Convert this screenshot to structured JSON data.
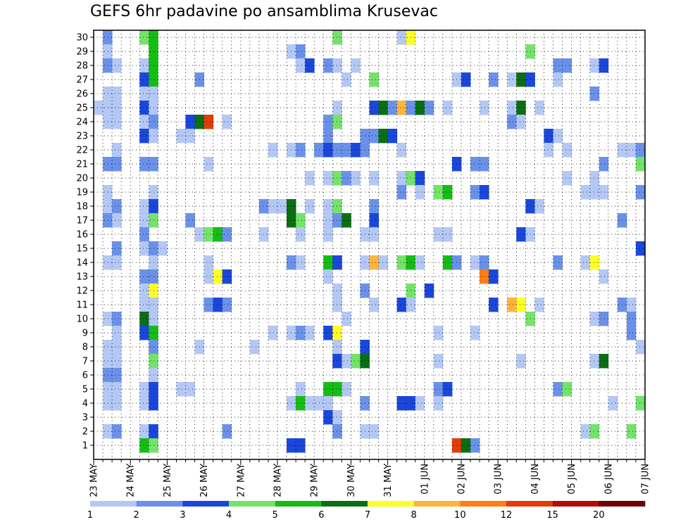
{
  "chart_data": {
    "type": "heatmap",
    "title": "GEFS 6hr padavine po ansamblima Krusevac",
    "xlabel": "",
    "ylabel": "",
    "y_range": [
      1,
      30
    ],
    "y_ticks": [
      "1",
      "2",
      "3",
      "4",
      "5",
      "6",
      "7",
      "8",
      "9",
      "10",
      "11",
      "12",
      "13",
      "14",
      "15",
      "16",
      "17",
      "18",
      "19",
      "20",
      "21",
      "22",
      "23",
      "24",
      "25",
      "26",
      "27",
      "28",
      "29",
      "30"
    ],
    "x_ticks": [
      "23 MAY",
      "24 MAY",
      "25 MAY",
      "26 MAY",
      "27 MAY",
      "28 MAY",
      "29 MAY",
      "30 MAY",
      "31 MAY",
      "01 JUN",
      "02 JUN",
      "03 JUN",
      "04 JUN",
      "05 JUN",
      "06 JUN",
      "07 JUN"
    ],
    "x_units": "6-hour steps from 23 MAY 00Z",
    "grid": true,
    "legend": {
      "placement": "bottom",
      "labels": [
        "1",
        "2",
        "3",
        "4",
        "5",
        "6",
        "7",
        "8",
        "10",
        "12",
        "15",
        "20"
      ],
      "colors": [
        "#b4c8f5",
        "#6a91ea",
        "#1a47db",
        "#73e36a",
        "#14bd14",
        "#0b6e14",
        "#ffff28",
        "#ffb43c",
        "#ff7d14",
        "#e13c0a",
        "#b40a0a",
        "#6e0000"
      ]
    },
    "cells": [
      [
        30,
        1,
        2
      ],
      [
        30,
        5,
        4
      ],
      [
        30,
        6,
        5
      ],
      [
        30,
        26,
        4
      ],
      [
        30,
        33,
        1
      ],
      [
        30,
        34,
        7
      ],
      [
        29,
        1,
        1
      ],
      [
        29,
        6,
        5
      ],
      [
        29,
        21,
        1
      ],
      [
        29,
        22,
        2
      ],
      [
        29,
        47,
        4
      ],
      [
        28,
        1,
        2
      ],
      [
        28,
        2,
        1
      ],
      [
        28,
        5,
        1
      ],
      [
        28,
        6,
        5
      ],
      [
        28,
        22,
        1
      ],
      [
        28,
        23,
        3
      ],
      [
        28,
        25,
        2
      ],
      [
        28,
        26,
        1
      ],
      [
        28,
        28,
        1
      ],
      [
        28,
        50,
        2
      ],
      [
        28,
        51,
        2
      ],
      [
        28,
        54,
        1
      ],
      [
        28,
        55,
        3
      ],
      [
        27,
        5,
        3
      ],
      [
        27,
        6,
        5
      ],
      [
        27,
        11,
        2
      ],
      [
        27,
        27,
        1
      ],
      [
        27,
        30,
        4
      ],
      [
        27,
        39,
        1
      ],
      [
        27,
        40,
        3
      ],
      [
        27,
        43,
        2
      ],
      [
        27,
        45,
        1
      ],
      [
        27,
        46,
        6
      ],
      [
        27,
        47,
        3
      ],
      [
        27,
        50,
        1
      ],
      [
        26,
        1,
        1
      ],
      [
        26,
        2,
        1
      ],
      [
        26,
        5,
        1
      ],
      [
        26,
        6,
        1
      ],
      [
        26,
        54,
        2
      ],
      [
        25,
        0,
        1
      ],
      [
        25,
        1,
        1
      ],
      [
        25,
        2,
        1
      ],
      [
        25,
        5,
        3
      ],
      [
        25,
        6,
        1
      ],
      [
        25,
        26,
        1
      ],
      [
        25,
        30,
        3
      ],
      [
        25,
        31,
        6
      ],
      [
        25,
        32,
        2
      ],
      [
        25,
        33,
        8
      ],
      [
        25,
        34,
        2
      ],
      [
        25,
        35,
        6
      ],
      [
        25,
        36,
        2
      ],
      [
        25,
        38,
        1
      ],
      [
        25,
        42,
        1
      ],
      [
        25,
        45,
        1
      ],
      [
        25,
        46,
        6
      ],
      [
        25,
        48,
        1
      ],
      [
        24,
        1,
        1
      ],
      [
        24,
        2,
        1
      ],
      [
        24,
        5,
        1
      ],
      [
        24,
        6,
        2
      ],
      [
        24,
        10,
        3
      ],
      [
        24,
        11,
        6
      ],
      [
        24,
        12,
        10
      ],
      [
        24,
        14,
        1
      ],
      [
        24,
        25,
        2
      ],
      [
        24,
        26,
        4
      ],
      [
        24,
        45,
        2
      ],
      [
        24,
        46,
        1
      ],
      [
        23,
        5,
        3
      ],
      [
        23,
        6,
        1
      ],
      [
        23,
        9,
        1
      ],
      [
        23,
        10,
        1
      ],
      [
        23,
        25,
        2
      ],
      [
        23,
        29,
        2
      ],
      [
        23,
        30,
        2
      ],
      [
        23,
        31,
        6
      ],
      [
        23,
        32,
        3
      ],
      [
        23,
        49,
        3
      ],
      [
        23,
        50,
        1
      ],
      [
        22,
        2,
        1
      ],
      [
        22,
        19,
        1
      ],
      [
        22,
        21,
        1
      ],
      [
        22,
        22,
        2
      ],
      [
        22,
        24,
        2
      ],
      [
        22,
        25,
        3
      ],
      [
        22,
        26,
        2
      ],
      [
        22,
        27,
        2
      ],
      [
        22,
        28,
        3
      ],
      [
        22,
        29,
        2
      ],
      [
        22,
        33,
        1
      ],
      [
        22,
        49,
        1
      ],
      [
        22,
        51,
        1
      ],
      [
        22,
        57,
        1
      ],
      [
        22,
        58,
        1
      ],
      [
        22,
        59,
        2
      ],
      [
        21,
        1,
        2
      ],
      [
        21,
        2,
        2
      ],
      [
        21,
        5,
        2
      ],
      [
        21,
        6,
        2
      ],
      [
        21,
        12,
        1
      ],
      [
        21,
        39,
        3
      ],
      [
        21,
        41,
        2
      ],
      [
        21,
        42,
        2
      ],
      [
        21,
        55,
        2
      ],
      [
        21,
        59,
        4
      ],
      [
        20,
        23,
        1
      ],
      [
        20,
        25,
        1
      ],
      [
        20,
        26,
        4
      ],
      [
        20,
        27,
        2
      ],
      [
        20,
        28,
        1
      ],
      [
        20,
        30,
        1
      ],
      [
        20,
        33,
        1
      ],
      [
        20,
        34,
        4
      ],
      [
        20,
        35,
        3
      ],
      [
        20,
        51,
        1
      ],
      [
        20,
        54,
        1
      ],
      [
        19,
        1,
        1
      ],
      [
        19,
        6,
        1
      ],
      [
        19,
        33,
        2
      ],
      [
        19,
        35,
        1
      ],
      [
        19,
        37,
        4
      ],
      [
        19,
        38,
        5
      ],
      [
        19,
        41,
        2
      ],
      [
        19,
        42,
        3
      ],
      [
        19,
        53,
        1
      ],
      [
        19,
        54,
        1
      ],
      [
        19,
        55,
        1
      ],
      [
        19,
        59,
        2
      ],
      [
        18,
        1,
        1
      ],
      [
        18,
        2,
        2
      ],
      [
        18,
        5,
        1
      ],
      [
        18,
        6,
        3
      ],
      [
        18,
        18,
        2
      ],
      [
        18,
        19,
        1
      ],
      [
        18,
        20,
        1
      ],
      [
        18,
        21,
        6
      ],
      [
        18,
        23,
        1
      ],
      [
        18,
        25,
        1
      ],
      [
        18,
        26,
        4
      ],
      [
        18,
        30,
        2
      ],
      [
        18,
        47,
        3
      ],
      [
        18,
        48,
        1
      ],
      [
        17,
        1,
        2
      ],
      [
        17,
        2,
        1
      ],
      [
        17,
        5,
        1
      ],
      [
        17,
        6,
        4
      ],
      [
        17,
        10,
        2
      ],
      [
        17,
        21,
        6
      ],
      [
        17,
        22,
        4
      ],
      [
        17,
        25,
        1
      ],
      [
        17,
        26,
        2
      ],
      [
        17,
        27,
        6
      ],
      [
        17,
        30,
        3
      ],
      [
        17,
        57,
        2
      ],
      [
        16,
        5,
        2
      ],
      [
        16,
        11,
        1
      ],
      [
        16,
        12,
        4
      ],
      [
        16,
        13,
        5
      ],
      [
        16,
        14,
        2
      ],
      [
        16,
        18,
        1
      ],
      [
        16,
        22,
        1
      ],
      [
        16,
        25,
        1
      ],
      [
        16,
        29,
        1
      ],
      [
        16,
        30,
        1
      ],
      [
        16,
        37,
        1
      ],
      [
        16,
        38,
        1
      ],
      [
        16,
        46,
        3
      ],
      [
        16,
        47,
        1
      ],
      [
        15,
        2,
        2
      ],
      [
        15,
        5,
        1
      ],
      [
        15,
        6,
        2
      ],
      [
        15,
        7,
        1
      ],
      [
        15,
        59,
        3
      ],
      [
        14,
        1,
        1
      ],
      [
        14,
        2,
        1
      ],
      [
        14,
        6,
        1
      ],
      [
        14,
        12,
        1
      ],
      [
        14,
        21,
        2
      ],
      [
        14,
        22,
        1
      ],
      [
        14,
        25,
        5
      ],
      [
        14,
        26,
        3
      ],
      [
        14,
        29,
        1
      ],
      [
        14,
        30,
        8
      ],
      [
        14,
        31,
        1
      ],
      [
        14,
        33,
        4
      ],
      [
        14,
        34,
        5
      ],
      [
        14,
        35,
        1
      ],
      [
        14,
        38,
        5
      ],
      [
        14,
        39,
        2
      ],
      [
        14,
        41,
        1
      ],
      [
        14,
        42,
        2
      ],
      [
        14,
        50,
        2
      ],
      [
        14,
        53,
        1
      ],
      [
        14,
        54,
        7
      ],
      [
        13,
        5,
        2
      ],
      [
        13,
        6,
        2
      ],
      [
        13,
        12,
        1
      ],
      [
        13,
        13,
        7
      ],
      [
        13,
        14,
        3
      ],
      [
        13,
        25,
        1
      ],
      [
        13,
        42,
        9
      ],
      [
        13,
        43,
        3
      ],
      [
        13,
        55,
        1
      ],
      [
        12,
        5,
        1
      ],
      [
        12,
        6,
        7
      ],
      [
        12,
        26,
        1
      ],
      [
        12,
        29,
        2
      ],
      [
        12,
        34,
        4
      ],
      [
        12,
        36,
        3
      ],
      [
        11,
        5,
        1
      ],
      [
        11,
        6,
        1
      ],
      [
        11,
        12,
        2
      ],
      [
        11,
        13,
        3
      ],
      [
        11,
        14,
        2
      ],
      [
        11,
        26,
        1
      ],
      [
        11,
        30,
        1
      ],
      [
        11,
        33,
        3
      ],
      [
        11,
        34,
        1
      ],
      [
        11,
        43,
        3
      ],
      [
        11,
        45,
        8
      ],
      [
        11,
        46,
        7
      ],
      [
        11,
        48,
        1
      ],
      [
        11,
        57,
        2
      ],
      [
        11,
        58,
        1
      ],
      [
        10,
        1,
        1
      ],
      [
        10,
        2,
        2
      ],
      [
        10,
        5,
        6
      ],
      [
        10,
        6,
        1
      ],
      [
        10,
        27,
        1
      ],
      [
        10,
        47,
        4
      ],
      [
        10,
        54,
        1
      ],
      [
        10,
        55,
        2
      ],
      [
        10,
        58,
        2
      ],
      [
        9,
        2,
        1
      ],
      [
        9,
        5,
        3
      ],
      [
        9,
        6,
        5
      ],
      [
        9,
        19,
        1
      ],
      [
        9,
        21,
        1
      ],
      [
        9,
        22,
        2
      ],
      [
        9,
        23,
        1
      ],
      [
        9,
        25,
        3
      ],
      [
        9,
        26,
        7
      ],
      [
        9,
        37,
        1
      ],
      [
        9,
        41,
        1
      ],
      [
        9,
        58,
        2
      ],
      [
        8,
        1,
        1
      ],
      [
        8,
        2,
        1
      ],
      [
        8,
        6,
        2
      ],
      [
        8,
        11,
        1
      ],
      [
        8,
        17,
        1
      ],
      [
        8,
        26,
        1
      ],
      [
        8,
        29,
        3
      ],
      [
        8,
        59,
        1
      ],
      [
        7,
        1,
        1
      ],
      [
        7,
        2,
        1
      ],
      [
        7,
        6,
        4
      ],
      [
        7,
        26,
        3
      ],
      [
        7,
        27,
        1
      ],
      [
        7,
        28,
        4
      ],
      [
        7,
        29,
        6
      ],
      [
        7,
        37,
        1
      ],
      [
        7,
        46,
        1
      ],
      [
        7,
        54,
        1
      ],
      [
        7,
        55,
        6
      ],
      [
        6,
        1,
        2
      ],
      [
        6,
        2,
        2
      ],
      [
        6,
        6,
        1
      ],
      [
        5,
        1,
        1
      ],
      [
        5,
        2,
        1
      ],
      [
        5,
        5,
        1
      ],
      [
        5,
        6,
        3
      ],
      [
        5,
        9,
        1
      ],
      [
        5,
        10,
        1
      ],
      [
        5,
        22,
        1
      ],
      [
        5,
        25,
        5
      ],
      [
        5,
        26,
        5
      ],
      [
        5,
        27,
        1
      ],
      [
        5,
        37,
        2
      ],
      [
        5,
        38,
        3
      ],
      [
        5,
        50,
        2
      ],
      [
        5,
        51,
        4
      ],
      [
        4,
        1,
        1
      ],
      [
        4,
        2,
        1
      ],
      [
        4,
        5,
        1
      ],
      [
        4,
        6,
        3
      ],
      [
        4,
        21,
        1
      ],
      [
        4,
        22,
        5
      ],
      [
        4,
        23,
        1
      ],
      [
        4,
        24,
        1
      ],
      [
        4,
        25,
        1
      ],
      [
        4,
        29,
        2
      ],
      [
        4,
        33,
        3
      ],
      [
        4,
        34,
        3
      ],
      [
        4,
        35,
        1
      ],
      [
        4,
        37,
        1
      ],
      [
        4,
        56,
        1
      ],
      [
        4,
        59,
        4
      ],
      [
        3,
        25,
        3
      ],
      [
        3,
        26,
        1
      ],
      [
        2,
        1,
        1
      ],
      [
        2,
        2,
        2
      ],
      [
        2,
        5,
        1
      ],
      [
        2,
        6,
        3
      ],
      [
        2,
        14,
        2
      ],
      [
        2,
        26,
        2
      ],
      [
        2,
        29,
        1
      ],
      [
        2,
        30,
        1
      ],
      [
        2,
        53,
        1
      ],
      [
        2,
        54,
        4
      ],
      [
        2,
        58,
        4
      ],
      [
        1,
        5,
        5
      ],
      [
        1,
        6,
        4
      ],
      [
        1,
        21,
        3
      ],
      [
        1,
        22,
        3
      ],
      [
        1,
        39,
        10
      ],
      [
        1,
        40,
        6
      ],
      [
        1,
        41,
        2
      ]
    ]
  }
}
